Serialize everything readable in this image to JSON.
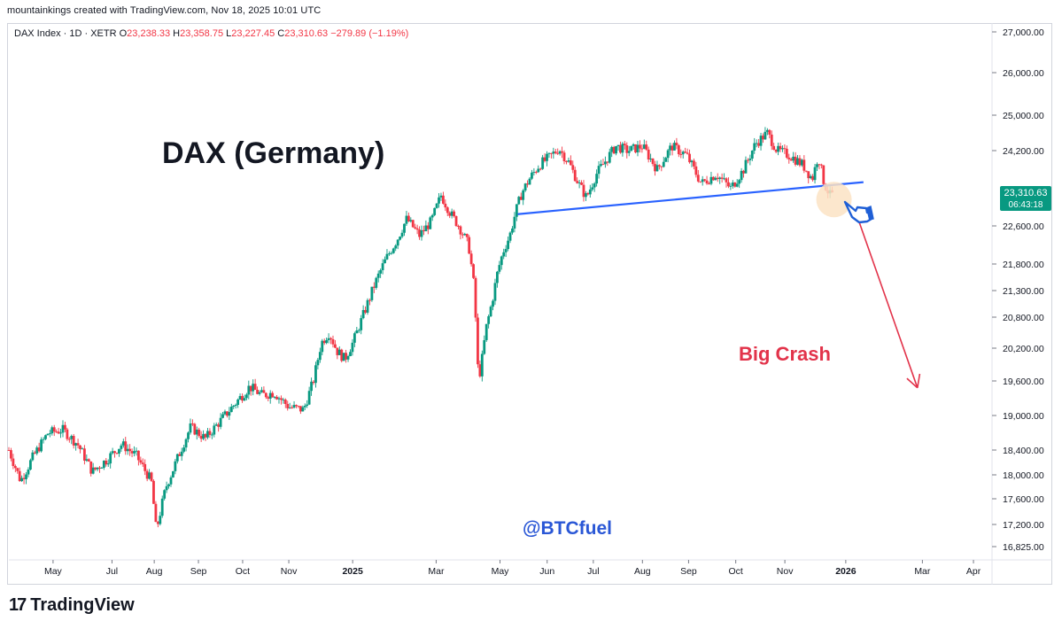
{
  "header": {
    "text": "mountainkings created with TradingView.com, Nov 18, 2025 10:01 UTC"
  },
  "legend": {
    "symbol": "DAX Index · 1D · XETR",
    "open_label": "O",
    "open": "23,238.33",
    "high_label": "H",
    "high": "23,358.75",
    "low_label": "L",
    "low": "23,227.45",
    "close_label": "C",
    "close": "23,310.63",
    "change": "−279.89 (−1.19%)"
  },
  "brand": {
    "name": "TradingView",
    "logo_text": "17"
  },
  "colors": {
    "up": "#089981",
    "down": "#f23645",
    "trendline": "#2962ff",
    "crash": "#e2334a",
    "price_tag": "#089981"
  },
  "chart_data": {
    "type": "candlestick",
    "title": "DAX (Germany)",
    "annotations": {
      "crash_text": "Big Crash",
      "watermark": "@BTCfuel"
    },
    "price_tag": {
      "price": "23,310.63",
      "countdown": "06:43:18"
    },
    "y_ticks": [
      {
        "label": "27,000.00",
        "value": 27000
      },
      {
        "label": "26,000.00",
        "value": 26000
      },
      {
        "label": "25,000.00",
        "value": 25000
      },
      {
        "label": "24,200.00",
        "value": 24200
      },
      {
        "label": "22,600.00",
        "value": 22600
      },
      {
        "label": "21,800.00",
        "value": 21800
      },
      {
        "label": "21,300.00",
        "value": 21300
      },
      {
        "label": "20,800.00",
        "value": 20800
      },
      {
        "label": "20,200.00",
        "value": 20200
      },
      {
        "label": "19,600.00",
        "value": 19600
      },
      {
        "label": "19,000.00",
        "value": 19000
      },
      {
        "label": "18,400.00",
        "value": 18400
      },
      {
        "label": "18,000.00",
        "value": 18000
      },
      {
        "label": "17,600.00",
        "value": 17600
      },
      {
        "label": "17,200.00",
        "value": 17200
      },
      {
        "label": "16,825.00",
        "value": 16825
      }
    ],
    "x_ticks": [
      {
        "label": "May",
        "bold": false
      },
      {
        "label": "Jul",
        "bold": false
      },
      {
        "label": "Aug",
        "bold": false
      },
      {
        "label": "Sep",
        "bold": false
      },
      {
        "label": "Oct",
        "bold": false
      },
      {
        "label": "Nov",
        "bold": false
      },
      {
        "label": "2025",
        "bold": true
      },
      {
        "label": "Mar",
        "bold": false
      },
      {
        "label": "May",
        "bold": false
      },
      {
        "label": "Jun",
        "bold": false
      },
      {
        "label": "Jul",
        "bold": false
      },
      {
        "label": "Aug",
        "bold": false
      },
      {
        "label": "Sep",
        "bold": false
      },
      {
        "label": "Oct",
        "bold": false
      },
      {
        "label": "Nov",
        "bold": false
      },
      {
        "label": "2026",
        "bold": true
      },
      {
        "label": "Mar",
        "bold": false
      },
      {
        "label": "Apr",
        "bold": false
      }
    ],
    "x_tick_days": [
      45,
      105,
      148,
      193,
      238,
      285,
      350,
      435,
      500,
      548,
      595,
      645,
      692,
      740,
      790,
      852,
      930,
      982
    ],
    "series_closes": [
      {
        "day": 0,
        "price": 18400
      },
      {
        "day": 12,
        "price": 17900
      },
      {
        "day": 25,
        "price": 18300
      },
      {
        "day": 40,
        "price": 18700
      },
      {
        "day": 55,
        "price": 18750
      },
      {
        "day": 70,
        "price": 18500
      },
      {
        "day": 85,
        "price": 18050
      },
      {
        "day": 100,
        "price": 18250
      },
      {
        "day": 115,
        "price": 18500
      },
      {
        "day": 130,
        "price": 18300
      },
      {
        "day": 145,
        "price": 17900
      },
      {
        "day": 150,
        "price": 17100
      },
      {
        "day": 160,
        "price": 17800
      },
      {
        "day": 175,
        "price": 18400
      },
      {
        "day": 185,
        "price": 18800
      },
      {
        "day": 200,
        "price": 18600
      },
      {
        "day": 215,
        "price": 18900
      },
      {
        "day": 230,
        "price": 19200
      },
      {
        "day": 245,
        "price": 19500
      },
      {
        "day": 258,
        "price": 19350
      },
      {
        "day": 270,
        "price": 19400
      },
      {
        "day": 285,
        "price": 19150
      },
      {
        "day": 300,
        "price": 19100
      },
      {
        "day": 310,
        "price": 19600
      },
      {
        "day": 318,
        "price": 20300
      },
      {
        "day": 326,
        "price": 20500
      },
      {
        "day": 334,
        "price": 20150
      },
      {
        "day": 342,
        "price": 20000
      },
      {
        "day": 350,
        "price": 20300
      },
      {
        "day": 360,
        "price": 20800
      },
      {
        "day": 372,
        "price": 21400
      },
      {
        "day": 385,
        "price": 21950
      },
      {
        "day": 395,
        "price": 22300
      },
      {
        "day": 405,
        "price": 22750
      },
      {
        "day": 418,
        "price": 22400
      },
      {
        "day": 430,
        "price": 22700
      },
      {
        "day": 440,
        "price": 23250
      },
      {
        "day": 450,
        "price": 22850
      },
      {
        "day": 458,
        "price": 22600
      },
      {
        "day": 468,
        "price": 22200
      },
      {
        "day": 474,
        "price": 21300
      },
      {
        "day": 478,
        "price": 19600
      },
      {
        "day": 481,
        "price": 19900
      },
      {
        "day": 486,
        "price": 20600
      },
      {
        "day": 492,
        "price": 21100
      },
      {
        "day": 497,
        "price": 21600
      },
      {
        "day": 503,
        "price": 22050
      },
      {
        "day": 510,
        "price": 22400
      },
      {
        "day": 516,
        "price": 22900
      },
      {
        "day": 522,
        "price": 23300
      },
      {
        "day": 530,
        "price": 23600
      },
      {
        "day": 540,
        "price": 23900
      },
      {
        "day": 550,
        "price": 24050
      },
      {
        "day": 560,
        "price": 24250
      },
      {
        "day": 570,
        "price": 23950
      },
      {
        "day": 580,
        "price": 23500
      },
      {
        "day": 588,
        "price": 23200
      },
      {
        "day": 598,
        "price": 23700
      },
      {
        "day": 608,
        "price": 24000
      },
      {
        "day": 618,
        "price": 24300
      },
      {
        "day": 630,
        "price": 24200
      },
      {
        "day": 645,
        "price": 24300
      },
      {
        "day": 660,
        "price": 23800
      },
      {
        "day": 675,
        "price": 24300
      },
      {
        "day": 690,
        "price": 24100
      },
      {
        "day": 705,
        "price": 23500
      },
      {
        "day": 720,
        "price": 23700
      },
      {
        "day": 735,
        "price": 23400
      },
      {
        "day": 748,
        "price": 23800
      },
      {
        "day": 760,
        "price": 24350
      },
      {
        "day": 772,
        "price": 24600
      },
      {
        "day": 782,
        "price": 24200
      },
      {
        "day": 795,
        "price": 24100
      },
      {
        "day": 808,
        "price": 23900
      },
      {
        "day": 818,
        "price": 23600
      },
      {
        "day": 824,
        "price": 24100
      },
      {
        "day": 830,
        "price": 23500
      },
      {
        "day": 836,
        "price": 23250
      },
      {
        "day": 840,
        "price": 23311
      }
    ],
    "trendline": {
      "start": {
        "day": 518,
        "price": 22850
      },
      "end": {
        "day": 870,
        "price": 23530
      }
    },
    "crash_arrow": {
      "start": {
        "day": 862,
        "price": 22900
      },
      "end": {
        "day": 925,
        "price": 19480
      }
    },
    "ylim": [
      16825,
      27000
    ],
    "xlim": [
      0,
      1000
    ]
  }
}
